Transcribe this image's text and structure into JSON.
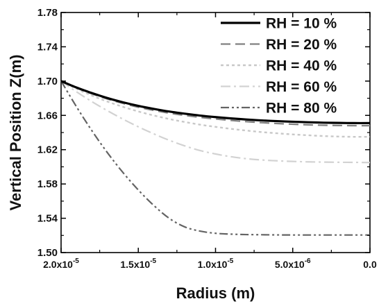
{
  "chart_data": {
    "type": "line",
    "xlabel": "Radius (m)",
    "ylabel": "Vertical Position Z(m)",
    "xlim": [
      2e-05,
      0.0
    ],
    "ylim": [
      1.5,
      1.78
    ],
    "x_reversed": true,
    "grid": false,
    "legend_position": "top-right",
    "x_ticks": [
      {
        "value": 2e-05,
        "label": "2.0x10",
        "exp": "-5"
      },
      {
        "value": 1.5e-05,
        "label": "1.5x10",
        "exp": "-5"
      },
      {
        "value": 1e-05,
        "label": "1.0x10",
        "exp": "-5"
      },
      {
        "value": 5e-06,
        "label": "5.0x10",
        "exp": "-6"
      },
      {
        "value": 0.0,
        "label": "0.0",
        "exp": ""
      }
    ],
    "y_ticks": [
      {
        "value": 1.5,
        "label": "1.50"
      },
      {
        "value": 1.54,
        "label": "1.54"
      },
      {
        "value": 1.58,
        "label": "1.58"
      },
      {
        "value": 1.62,
        "label": "1.62"
      },
      {
        "value": 1.66,
        "label": "1.66"
      },
      {
        "value": 1.7,
        "label": "1.70"
      },
      {
        "value": 1.74,
        "label": "1.74"
      },
      {
        "value": 1.78,
        "label": "1.78"
      }
    ],
    "x": [
      2e-05,
      1.9e-05,
      1.8e-05,
      1.7e-05,
      1.6e-05,
      1.5e-05,
      1.4e-05,
      1.3e-05,
      1.2e-05,
      1.1e-05,
      1e-05,
      9e-06,
      8e-06,
      7e-06,
      6e-06,
      5e-06,
      4e-06,
      3e-06,
      2e-06,
      1e-06,
      0.0
    ],
    "series": [
      {
        "name": "RH = 10 %",
        "color": "#000000",
        "dash": "solid",
        "values": [
          1.7,
          1.6925,
          1.686,
          1.6802,
          1.6753,
          1.6711,
          1.6676,
          1.6645,
          1.662,
          1.6598,
          1.658,
          1.6565,
          1.6552,
          1.6541,
          1.6533,
          1.6526,
          1.652,
          1.6515,
          1.6512,
          1.651,
          1.651
        ]
      },
      {
        "name": "RH = 20 %",
        "color": "#808080",
        "dash": "dashed",
        "values": [
          1.7,
          1.692,
          1.6851,
          1.6791,
          1.674,
          1.6695,
          1.6658,
          1.6626,
          1.66,
          1.6577,
          1.6558,
          1.6541,
          1.6527,
          1.6515,
          1.6505,
          1.6497,
          1.649,
          1.6485,
          1.6482,
          1.648,
          1.648
        ]
      },
      {
        "name": "RH = 40 %",
        "color": "#c8c8c8",
        "dash": "dotted",
        "values": [
          1.7,
          1.691,
          1.6831,
          1.6761,
          1.67,
          1.6646,
          1.6599,
          1.6558,
          1.6523,
          1.6492,
          1.6466,
          1.6443,
          1.6423,
          1.6405,
          1.6391,
          1.6378,
          1.6368,
          1.6359,
          1.6353,
          1.635,
          1.635
        ]
      },
      {
        "name": "RH = 60 %",
        "color": "#d2d2d2",
        "dash": "dashdot",
        "values": [
          1.7,
          1.6875,
          1.676,
          1.6655,
          1.6557,
          1.6467,
          1.6385,
          1.631,
          1.6245,
          1.619,
          1.615,
          1.6118,
          1.6095,
          1.608,
          1.607,
          1.6063,
          1.6058,
          1.6055,
          1.6053,
          1.6052,
          1.605
        ]
      },
      {
        "name": "RH = 80 %",
        "color": "#646464",
        "dash": "dashdotdot",
        "values": [
          1.7,
          1.67,
          1.642,
          1.6165,
          1.5935,
          1.573,
          1.555,
          1.54,
          1.53,
          1.525,
          1.5225,
          1.5215,
          1.521,
          1.5208,
          1.5206,
          1.5205,
          1.5205,
          1.5205,
          1.5205,
          1.5205,
          1.5205
        ]
      }
    ]
  }
}
